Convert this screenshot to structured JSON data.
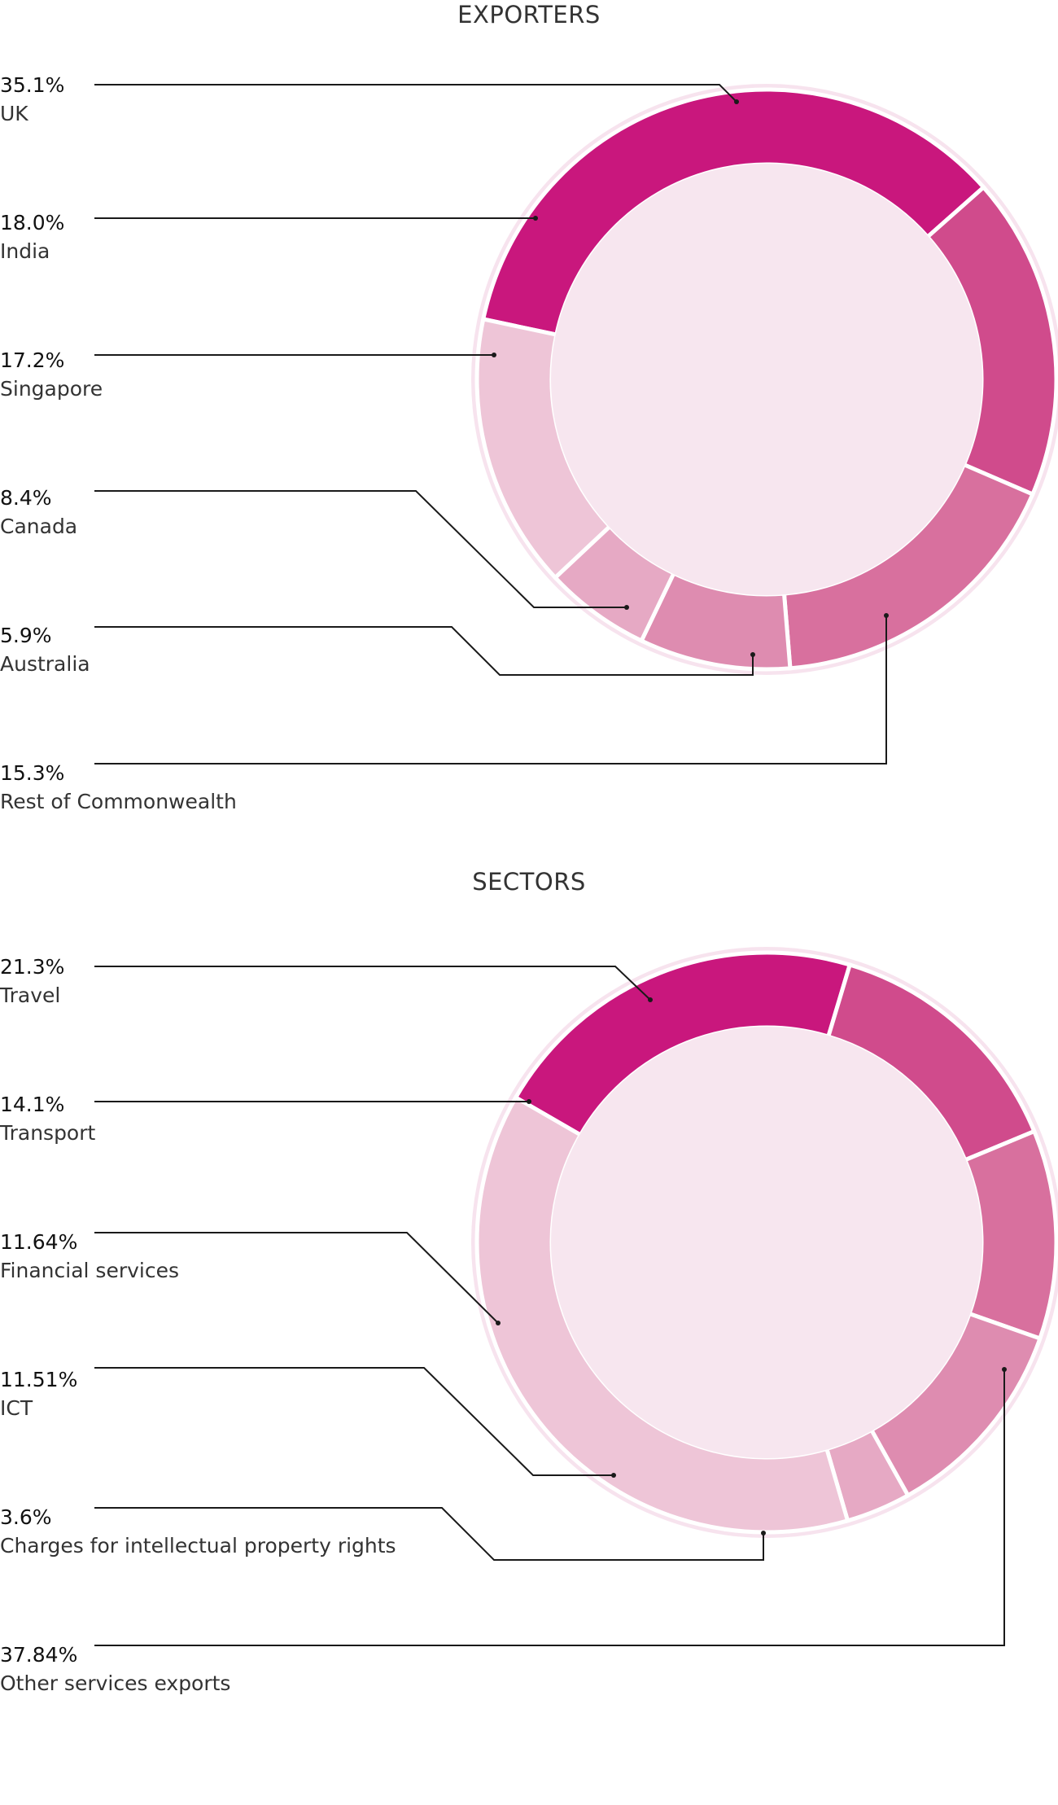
{
  "chart_data": [
    {
      "type": "pie",
      "title": "EXPORTERS",
      "slices": [
        {
          "label": "UK",
          "value_label": "35.1%",
          "value": 35.1,
          "color": "#c9177d"
        },
        {
          "label": "India",
          "value_label": "18.0%",
          "value": 18.0,
          "color": "#d04b8c"
        },
        {
          "label": "Singapore",
          "value_label": "17.2%",
          "value": 17.2,
          "color": "#d8709e"
        },
        {
          "label": "Canada",
          "value_label": "8.4%",
          "value": 8.4,
          "color": "#de8cb0"
        },
        {
          "label": "Australia",
          "value_label": "5.9%",
          "value": 5.9,
          "color": "#e6a9c4"
        },
        {
          "label": "Rest of Commonwealth",
          "value_label": "15.3%",
          "value": 15.3,
          "color": "#eec5d7"
        }
      ],
      "legend": "left"
    },
    {
      "type": "pie",
      "title": "SECTORS",
      "slices": [
        {
          "label": "Travel",
          "value_label": "21.3%",
          "value": 21.3,
          "color": "#c9177d"
        },
        {
          "label": "Transport",
          "value_label": "14.1%",
          "value": 14.1,
          "color": "#d04b8c"
        },
        {
          "label": "Financial services",
          "value_label": "11.64%",
          "value": 11.64,
          "color": "#d8709e"
        },
        {
          "label": "ICT",
          "value_label": "11.51%",
          "value": 11.51,
          "color": "#de8cb0"
        },
        {
          "label": "Charges for intellectual property rights",
          "value_label": "3.6%",
          "value": 3.6,
          "color": "#e6a9c4"
        },
        {
          "label": "Other services exports",
          "value_label": "37.84%",
          "value": 37.84,
          "color": "#eec5d7"
        }
      ],
      "legend": "left"
    }
  ],
  "colors": {
    "ring_background": "#f7e3ee",
    "hole": "#f7e6ef",
    "leader_line": "#1a1a1a"
  }
}
